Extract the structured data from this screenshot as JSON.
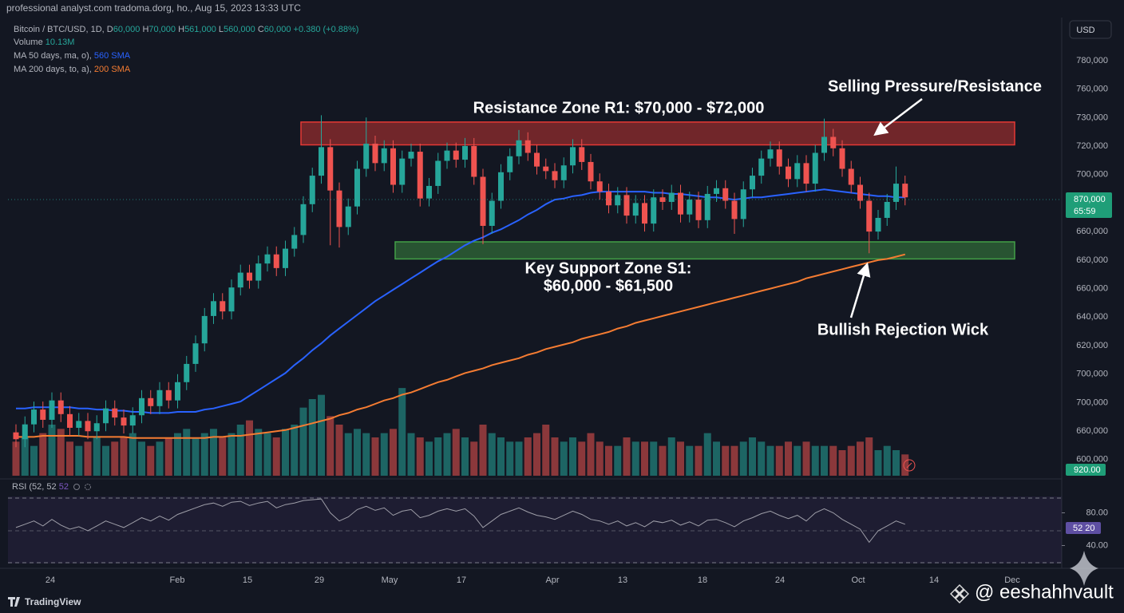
{
  "header": {
    "title": "professional analyst.com tradoma.dorg, ho., Aug 15, 2023 13:33 UTC",
    "currency": "USD"
  },
  "legend": {
    "symbol": "Bitcoin / BTC/USD, 1D,",
    "ohlc": [
      {
        "key": "D",
        "value": "60,000"
      },
      {
        "key": "H",
        "value": "70,000"
      },
      {
        "key": "H",
        "value": "561,000"
      },
      {
        "key": "L",
        "value": "560,000"
      },
      {
        "key": "C",
        "value": "60,000"
      }
    ],
    "change": "+0.380 (+0.88%)"
  },
  "price_axis_labels": [
    "780,000",
    "760,000",
    "730,000",
    "720,000",
    "700,000",
    "660,000",
    "660,000",
    "660,000",
    "640,000",
    "620,000",
    "700,000",
    "700,000",
    "660,000",
    "600,000"
  ],
  "time_axis_labels": [
    "24",
    "Feb",
    "15",
    "29",
    "May",
    "17",
    "Apr",
    "13",
    "18",
    "24",
    "Oct",
    "14",
    "Dec"
  ],
  "badges": {
    "last_price": "870,000",
    "countdown": "65:59",
    "volume": "920.00"
  },
  "annotations": {
    "resistance": "Resistance Zone R1: $70,000 - $72,000",
    "selling": "Selling Pressure/Resistance",
    "support": [
      "Key Support Zone S1:",
      "$60,000 - $61,500"
    ],
    "wick": "Bullish Rejection Wick"
  },
  "footer": {
    "brand": "TradingView",
    "watermark": "@ eeshahhvault"
  },
  "chart_data": {
    "type": "candlestick",
    "ylim": [
      41000,
      78500
    ],
    "up_color": "#26a69a",
    "down_color": "#ef5350",
    "open": [
      44800,
      44200,
      45500,
      46800,
      45900,
      47600,
      46400,
      45200,
      45800,
      44900,
      45600,
      46900,
      46100,
      45400,
      46300,
      47800,
      47100,
      48500,
      47600,
      49200,
      50800,
      52600,
      55000,
      56300,
      55400,
      57500,
      58800,
      58100,
      59600,
      60400,
      59200,
      60900,
      62100,
      64800,
      67300,
      69800,
      66000,
      62800,
      64600,
      67900,
      70100,
      68400,
      69700,
      66500,
      68800,
      69400,
      65300,
      66400,
      68600,
      69500,
      68700,
      69900,
      67200,
      62900,
      65100,
      67600,
      69000,
      70400,
      69300,
      68100,
      67700,
      66900,
      68200,
      69800,
      68500,
      66800,
      65900,
      64700,
      65600,
      63800,
      64900,
      63100,
      65400,
      65000,
      65800,
      63900,
      65200,
      63400,
      65700,
      66200,
      65100,
      63500,
      66100,
      67300,
      68800,
      69600,
      68100,
      67000,
      68400,
      66600,
      69300,
      70700,
      69700,
      67900,
      66500,
      65100,
      62400,
      63600,
      65000,
      66600
    ],
    "high": [
      45500,
      46200,
      47500,
      47500,
      48300,
      48300,
      47100,
      46500,
      46500,
      46300,
      47600,
      47600,
      46800,
      47000,
      48500,
      48500,
      49200,
      49200,
      49900,
      51500,
      53300,
      55700,
      57000,
      57000,
      58200,
      59500,
      59500,
      60300,
      61100,
      61100,
      61600,
      62800,
      65500,
      68000,
      72600,
      70500,
      66700,
      65300,
      68600,
      72400,
      70800,
      70400,
      70400,
      69500,
      70100,
      70100,
      67100,
      69300,
      70200,
      70200,
      70600,
      70600,
      67900,
      65800,
      68300,
      69700,
      71300,
      71100,
      70000,
      68800,
      68400,
      68900,
      70500,
      70500,
      69200,
      67500,
      66600,
      66300,
      66300,
      65600,
      65600,
      66100,
      66100,
      66500,
      66500,
      65900,
      65900,
      66400,
      66900,
      66900,
      65800,
      66800,
      68000,
      69500,
      70300,
      70300,
      68800,
      69100,
      69100,
      70000,
      72300,
      71400,
      70400,
      68600,
      67200,
      65800,
      64300,
      65700,
      68100,
      67300
    ],
    "low": [
      43500,
      43500,
      44800,
      45200,
      45200,
      45700,
      44500,
      44500,
      44200,
      44200,
      44900,
      45400,
      44700,
      44700,
      45600,
      46400,
      46400,
      46900,
      46900,
      48500,
      50100,
      51900,
      54300,
      54700,
      54700,
      56800,
      57400,
      57400,
      58900,
      58500,
      58500,
      60200,
      61400,
      64100,
      66600,
      61200,
      61000,
      62100,
      63900,
      67200,
      67700,
      67700,
      65800,
      65800,
      68100,
      64600,
      64600,
      65700,
      67900,
      68000,
      68000,
      66500,
      61300,
      62200,
      64400,
      66900,
      68300,
      68600,
      67400,
      67000,
      66200,
      66200,
      67500,
      67800,
      66100,
      65200,
      64000,
      64000,
      63100,
      63100,
      62400,
      62400,
      64300,
      64300,
      63200,
      63200,
      62700,
      62700,
      65000,
      64400,
      62200,
      62800,
      65400,
      66600,
      68100,
      67400,
      66300,
      66300,
      65900,
      65900,
      68600,
      69000,
      67200,
      65800,
      64400,
      60500,
      61700,
      62900,
      64300,
      64700
    ],
    "close": [
      44200,
      45500,
      46800,
      45900,
      47600,
      46400,
      45200,
      45800,
      44900,
      45600,
      46900,
      46100,
      45400,
      46300,
      47800,
      47100,
      48500,
      47600,
      49200,
      50800,
      52600,
      55000,
      56300,
      55400,
      57500,
      58800,
      58100,
      59600,
      60400,
      59200,
      60900,
      62100,
      64800,
      67300,
      69800,
      66000,
      62800,
      64600,
      67900,
      70100,
      68400,
      69700,
      66500,
      68800,
      69400,
      65300,
      66400,
      68600,
      69500,
      68700,
      69900,
      67200,
      62900,
      65100,
      67600,
      69000,
      70400,
      69300,
      68100,
      67700,
      66900,
      68200,
      69800,
      68500,
      66800,
      65900,
      64700,
      65600,
      63800,
      64900,
      63100,
      65400,
      65000,
      65800,
      63900,
      65200,
      63400,
      65700,
      66200,
      65100,
      63500,
      66100,
      67300,
      68800,
      69600,
      68100,
      67000,
      68400,
      66600,
      69300,
      70700,
      69700,
      67900,
      66500,
      65100,
      62400,
      63600,
      65000,
      66600,
      65400
    ],
    "series": [
      {
        "name": "MA 50 days, ma, o),",
        "tag": "560 SMA",
        "color": "#2962ff",
        "values": [
          46900,
          46900,
          47000,
          47000,
          47000,
          47000,
          47000,
          46900,
          46900,
          46800,
          46800,
          46700,
          46700,
          46600,
          46600,
          46500,
          46500,
          46500,
          46600,
          46600,
          46600,
          46800,
          46900,
          47100,
          47300,
          47500,
          48000,
          48500,
          49000,
          49500,
          50000,
          50700,
          51300,
          52000,
          52600,
          53300,
          53900,
          54500,
          55100,
          55700,
          56300,
          56800,
          57300,
          57800,
          58300,
          58800,
          59300,
          59800,
          60200,
          60700,
          61200,
          61600,
          61900,
          62300,
          62600,
          63000,
          63400,
          63900,
          64300,
          64800,
          65200,
          65300,
          65500,
          65600,
          65800,
          65900,
          65900,
          65900,
          65900,
          65900,
          65900,
          65800,
          65800,
          65700,
          65700,
          65600,
          65500,
          65400,
          65400,
          65300,
          65200,
          65300,
          65400,
          65400,
          65500,
          65600,
          65700,
          65800,
          65900,
          66000,
          66100,
          66000,
          65900,
          65800,
          65700,
          65600,
          65500,
          65500,
          65400,
          65400
        ]
      },
      {
        "name": "MA 200 days, to, a),",
        "tag": "200 SMA",
        "color": "#f57c32",
        "values": [
          44400,
          44400,
          44400,
          44500,
          44500,
          44500,
          44500,
          44500,
          44400,
          44400,
          44400,
          44400,
          44400,
          44300,
          44300,
          44300,
          44300,
          44300,
          44300,
          44300,
          44300,
          44300,
          44400,
          44400,
          44500,
          44500,
          44600,
          44700,
          44800,
          44900,
          45000,
          45200,
          45400,
          45600,
          45800,
          46000,
          46300,
          46500,
          46800,
          47000,
          47300,
          47600,
          47800,
          48100,
          48300,
          48600,
          48900,
          49200,
          49400,
          49700,
          50000,
          50200,
          50400,
          50700,
          50900,
          51100,
          51300,
          51600,
          51800,
          52100,
          52300,
          52500,
          52700,
          53000,
          53200,
          53400,
          53600,
          53900,
          54100,
          54400,
          54600,
          54800,
          55000,
          55200,
          55400,
          55600,
          55800,
          56000,
          56200,
          56400,
          56600,
          56800,
          57000,
          57200,
          57400,
          57600,
          57800,
          58000,
          58300,
          58500,
          58700,
          58900,
          59100,
          59300,
          59500,
          59700,
          59900,
          60000,
          60200,
          60400
        ]
      }
    ],
    "zones": [
      {
        "low": 70000,
        "high": 72000,
        "color": "#e53935"
      },
      {
        "low": 60000,
        "high": 61500,
        "color": "#43a047"
      }
    ],
    "volume": {
      "name": "Volume",
      "value_label": "10.13M",
      "ylim": [
        0,
        30
      ],
      "values": [
        8,
        9,
        7,
        10,
        12,
        11,
        8,
        7,
        8,
        9,
        7,
        8,
        9,
        10,
        8,
        7,
        8,
        9,
        10,
        11,
        9,
        10,
        11,
        9,
        10,
        12,
        13,
        11,
        10,
        9,
        11,
        12,
        16,
        18,
        19,
        14,
        12,
        10,
        11,
        10,
        9,
        10,
        11,
        20.6,
        10,
        9,
        8,
        9,
        10,
        11,
        9,
        8,
        12,
        10,
        9,
        8,
        8,
        9,
        10,
        12,
        9,
        8,
        9,
        8,
        10,
        8,
        7,
        7,
        9,
        8,
        8,
        8,
        7,
        9,
        8,
        7,
        7,
        10,
        8,
        7,
        7,
        8,
        9,
        8,
        7,
        7,
        8,
        7,
        8,
        7,
        7,
        7,
        6,
        7,
        8,
        9,
        6,
        7,
        6,
        5
      ]
    },
    "rsi": {
      "name": "RSI (52, 52",
      "tag": "52",
      "last_label": "52 20",
      "color": "#9e9ea8",
      "ylim": [
        18,
        100
      ],
      "yticks": [
        {
          "value": 80,
          "label": "80.00"
        },
        {
          "value": 40,
          "label": "40.00"
        }
      ],
      "values": [
        62,
        66,
        70,
        64,
        72,
        65,
        60,
        63,
        58,
        64,
        70,
        66,
        62,
        68,
        74,
        70,
        76,
        71,
        78,
        82,
        86,
        90,
        92,
        88,
        93,
        94,
        89,
        92,
        94,
        86,
        90,
        92,
        95,
        96,
        97,
        80,
        70,
        75,
        84,
        88,
        83,
        86,
        77,
        82,
        84,
        74,
        77,
        82,
        85,
        82,
        85,
        76,
        62,
        70,
        78,
        82,
        86,
        81,
        77,
        75,
        72,
        77,
        82,
        78,
        72,
        70,
        66,
        70,
        64,
        68,
        63,
        70,
        68,
        71,
        65,
        69,
        64,
        71,
        72,
        68,
        63,
        70,
        74,
        79,
        82,
        77,
        73,
        77,
        70,
        80,
        85,
        80,
        72,
        66,
        60,
        44,
        58,
        64,
        70,
        66
      ]
    }
  }
}
